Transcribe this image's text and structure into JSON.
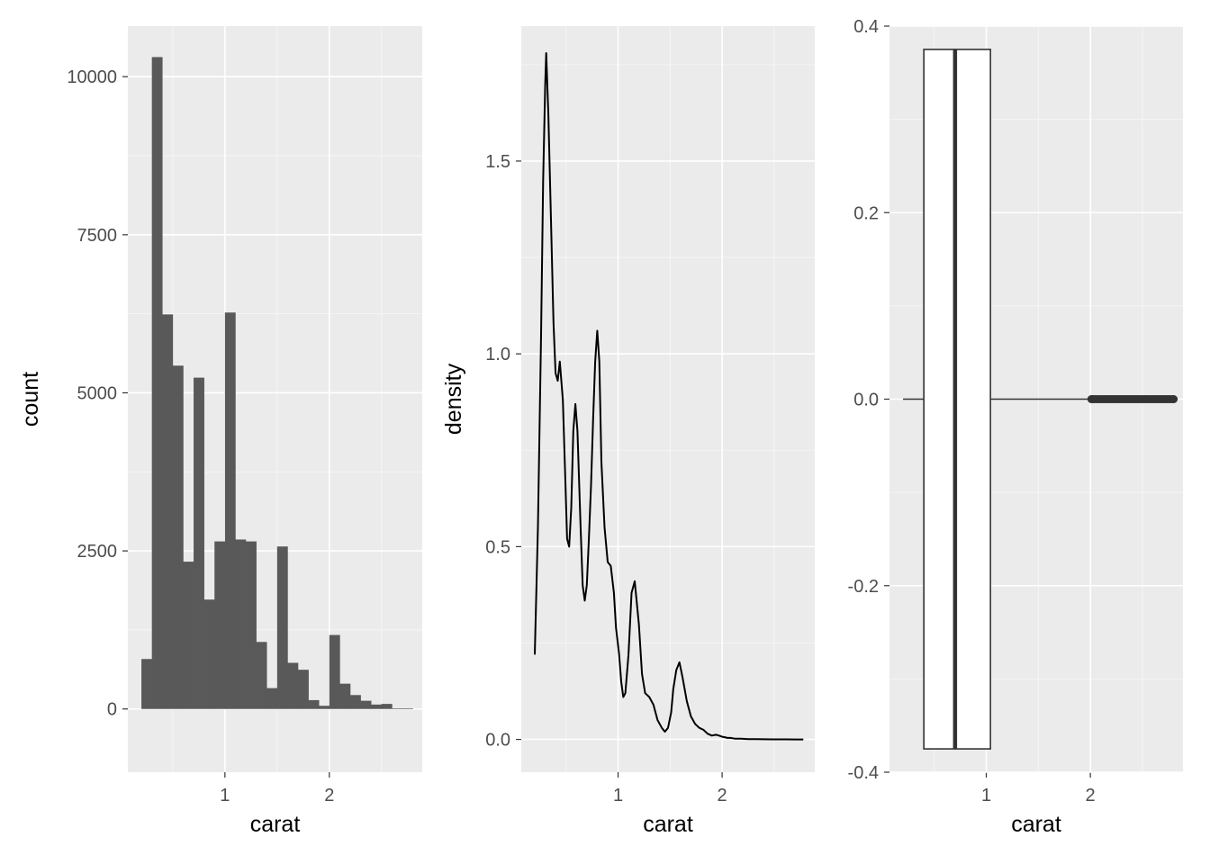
{
  "theme": {
    "panel_background": "#ebebeb",
    "grid_major": "#ffffff",
    "bar_fill": "#595959",
    "line_color": "#000000",
    "tick_label_color": "#4d4d4d"
  },
  "chart_data": [
    {
      "type": "bar",
      "subtype": "histogram",
      "xlabel": "carat",
      "ylabel": "count",
      "xlim": [
        0.07,
        2.89
      ],
      "ylim": [
        -1000,
        10800
      ],
      "x_ticks": [
        1,
        2
      ],
      "x_tick_labels": [
        "1",
        "2"
      ],
      "y_ticks": [
        0,
        2500,
        5000,
        7500,
        10000
      ],
      "y_tick_labels": [
        "0",
        "2500",
        "5000",
        "7500",
        "10000"
      ],
      "bin_width": 0.1,
      "bins": [
        {
          "x0": 0.2,
          "x1": 0.3,
          "count": 790
        },
        {
          "x0": 0.3,
          "x1": 0.4,
          "count": 10310
        },
        {
          "x0": 0.4,
          "x1": 0.5,
          "count": 6240
        },
        {
          "x0": 0.5,
          "x1": 0.6,
          "count": 5430
        },
        {
          "x0": 0.6,
          "x1": 0.7,
          "count": 2330
        },
        {
          "x0": 0.7,
          "x1": 0.8,
          "count": 5240
        },
        {
          "x0": 0.8,
          "x1": 0.9,
          "count": 1730
        },
        {
          "x0": 0.9,
          "x1": 1.0,
          "count": 2650
        },
        {
          "x0": 1.0,
          "x1": 1.1,
          "count": 6270
        },
        {
          "x0": 1.1,
          "x1": 1.2,
          "count": 2680
        },
        {
          "x0": 1.2,
          "x1": 1.3,
          "count": 2650
        },
        {
          "x0": 1.3,
          "x1": 1.4,
          "count": 1060
        },
        {
          "x0": 1.4,
          "x1": 1.5,
          "count": 330
        },
        {
          "x0": 1.5,
          "x1": 1.6,
          "count": 2570
        },
        {
          "x0": 1.6,
          "x1": 1.7,
          "count": 730
        },
        {
          "x0": 1.7,
          "x1": 1.8,
          "count": 620
        },
        {
          "x0": 1.8,
          "x1": 1.9,
          "count": 140
        },
        {
          "x0": 1.9,
          "x1": 2.0,
          "count": 50
        },
        {
          "x0": 2.0,
          "x1": 2.1,
          "count": 1170
        },
        {
          "x0": 2.1,
          "x1": 2.2,
          "count": 400
        },
        {
          "x0": 2.2,
          "x1": 2.3,
          "count": 220
        },
        {
          "x0": 2.3,
          "x1": 2.4,
          "count": 130
        },
        {
          "x0": 2.4,
          "x1": 2.5,
          "count": 70
        },
        {
          "x0": 2.5,
          "x1": 2.6,
          "count": 80
        },
        {
          "x0": 2.6,
          "x1": 2.7,
          "count": 10
        },
        {
          "x0": 2.7,
          "x1": 2.8,
          "count": 10
        }
      ]
    },
    {
      "type": "line",
      "subtype": "density",
      "xlabel": "carat",
      "ylabel": "density",
      "xlim": [
        0.07,
        2.89
      ],
      "ylim": [
        -0.085,
        1.85
      ],
      "x_ticks": [
        1,
        2
      ],
      "x_tick_labels": [
        "1",
        "2"
      ],
      "y_ticks": [
        0.0,
        0.5,
        1.0,
        1.5
      ],
      "y_tick_labels": [
        "0.0",
        "0.5",
        "1.0",
        "1.5"
      ],
      "x": [
        0.2,
        0.23,
        0.26,
        0.28,
        0.3,
        0.31,
        0.33,
        0.36,
        0.38,
        0.4,
        0.42,
        0.44,
        0.47,
        0.49,
        0.51,
        0.53,
        0.55,
        0.57,
        0.59,
        0.61,
        0.64,
        0.66,
        0.68,
        0.7,
        0.72,
        0.74,
        0.76,
        0.78,
        0.8,
        0.82,
        0.84,
        0.87,
        0.9,
        0.93,
        0.96,
        0.98,
        1.01,
        1.03,
        1.05,
        1.07,
        1.1,
        1.13,
        1.16,
        1.2,
        1.23,
        1.26,
        1.3,
        1.34,
        1.38,
        1.42,
        1.45,
        1.48,
        1.51,
        1.53,
        1.56,
        1.59,
        1.62,
        1.66,
        1.7,
        1.74,
        1.78,
        1.82,
        1.86,
        1.9,
        1.94,
        1.97,
        2.0,
        2.02,
        2.05,
        2.08,
        2.12,
        2.18,
        2.25,
        2.33,
        2.4,
        2.48,
        2.52,
        2.56,
        2.62,
        2.7,
        2.78
      ],
      "y": [
        0.22,
        0.55,
        1.05,
        1.45,
        1.7,
        1.78,
        1.62,
        1.3,
        1.08,
        0.95,
        0.93,
        0.98,
        0.88,
        0.7,
        0.52,
        0.5,
        0.6,
        0.8,
        0.87,
        0.8,
        0.55,
        0.4,
        0.36,
        0.4,
        0.52,
        0.66,
        0.83,
        0.98,
        1.06,
        0.98,
        0.72,
        0.55,
        0.46,
        0.45,
        0.38,
        0.29,
        0.22,
        0.15,
        0.11,
        0.12,
        0.22,
        0.38,
        0.41,
        0.3,
        0.17,
        0.12,
        0.11,
        0.09,
        0.05,
        0.03,
        0.02,
        0.03,
        0.07,
        0.13,
        0.18,
        0.2,
        0.16,
        0.1,
        0.06,
        0.04,
        0.03,
        0.025,
        0.015,
        0.01,
        0.012,
        0.01,
        0.007,
        0.006,
        0.004,
        0.004,
        0.002,
        0.002,
        0.001,
        0.0006,
        0.0005,
        0.0003,
        0.0003,
        0.0002,
        0.0001,
        0.0,
        0.0
      ]
    },
    {
      "type": "boxplot",
      "orientation": "horizontal",
      "xlabel": "carat",
      "ylabel": "",
      "xlim": [
        0.07,
        2.89
      ],
      "ylim": [
        -0.4,
        0.4
      ],
      "x_ticks": [
        1,
        2
      ],
      "x_tick_labels": [
        "1",
        "2"
      ],
      "y_ticks": [
        -0.4,
        -0.2,
        0.0,
        0.2,
        0.4
      ],
      "y_tick_labels": [
        "-0.4",
        "-0.2",
        "0.0",
        "0.2",
        "0.4"
      ],
      "box": {
        "whisker_low": 0.2,
        "q1": 0.4,
        "median": 0.7,
        "q3": 1.04,
        "whisker_high": 2.0,
        "y_center": 0.0,
        "half_height": 0.375
      },
      "outliers": [
        2.01,
        2.02,
        2.03,
        2.05,
        2.07,
        2.09,
        2.11,
        2.13,
        2.15,
        2.17,
        2.19,
        2.21,
        2.23,
        2.25,
        2.27,
        2.29,
        2.31,
        2.33,
        2.35,
        2.37,
        2.39,
        2.41,
        2.43,
        2.45,
        2.47,
        2.49,
        2.51,
        2.53,
        2.55,
        2.57,
        2.59,
        2.61,
        2.63,
        2.65,
        2.67,
        2.69,
        2.71,
        2.73,
        2.75,
        2.77,
        2.79,
        2.8
      ]
    }
  ]
}
